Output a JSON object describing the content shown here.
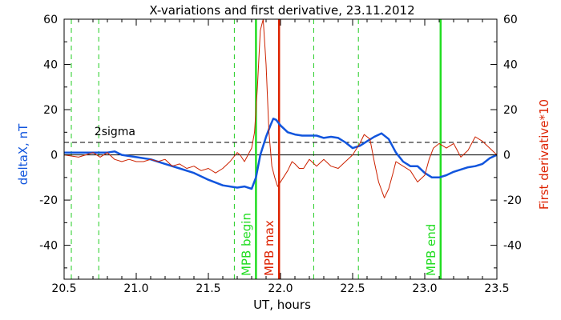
{
  "chart_data": {
    "type": "line",
    "title": "X-variations and first derivative, 23.11.2012",
    "xlabel": "UT, hours",
    "ylabel_left": "deltaX, nT",
    "ylabel_right": "First derivative*10",
    "xlim": [
      20.5,
      23.5
    ],
    "ylim": [
      -55,
      60
    ],
    "x_ticks": [
      "20.5",
      "21.0",
      "21.5",
      "22.0",
      "22.5",
      "23.0",
      "23.5"
    ],
    "y_ticks_left": [
      "-40",
      "-20",
      "0",
      "20",
      "40",
      "60"
    ],
    "y_ticks_right": [
      "-40",
      "-20",
      "0",
      "20",
      "40",
      "60"
    ],
    "threshold": {
      "label": "2sigma",
      "value": 5.5
    },
    "series": [
      {
        "name": "deltaX",
        "color": "#1155dd",
        "x": [
          20.5,
          20.6,
          20.7,
          20.8,
          20.85,
          20.9,
          21.0,
          21.1,
          21.2,
          21.3,
          21.4,
          21.5,
          21.6,
          21.65,
          21.7,
          21.75,
          21.8,
          21.83,
          21.86,
          21.9,
          21.93,
          21.95,
          21.97,
          22.0,
          22.05,
          22.1,
          22.15,
          22.2,
          22.25,
          22.3,
          22.35,
          22.4,
          22.45,
          22.5,
          22.55,
          22.6,
          22.65,
          22.7,
          22.75,
          22.8,
          22.85,
          22.9,
          22.95,
          23.0,
          23.05,
          23.1,
          23.15,
          23.2,
          23.25,
          23.3,
          23.35,
          23.4,
          23.45,
          23.5
        ],
        "y": [
          1,
          1,
          1,
          1,
          1.5,
          0,
          -1,
          -2,
          -4,
          -6,
          -8,
          -11,
          -13.5,
          -14,
          -14.5,
          -14,
          -15,
          -10,
          0,
          8,
          13,
          16,
          15.5,
          13,
          10,
          9,
          8.5,
          8.5,
          8.5,
          7.5,
          8,
          7.5,
          5.5,
          3,
          4,
          6,
          8,
          9.5,
          7,
          1,
          -3,
          -5,
          -5,
          -8,
          -10,
          -10,
          -9,
          -7.5,
          -6.5,
          -5.5,
          -5,
          -4,
          -1.5,
          0
        ]
      },
      {
        "name": "First derivative*10",
        "color": "#cc2200",
        "x": [
          20.5,
          20.55,
          20.6,
          20.65,
          20.7,
          20.75,
          20.8,
          20.85,
          20.9,
          20.95,
          21.0,
          21.05,
          21.1,
          21.15,
          21.2,
          21.25,
          21.3,
          21.35,
          21.4,
          21.45,
          21.5,
          21.55,
          21.6,
          21.65,
          21.7,
          21.72,
          21.75,
          21.8,
          21.82,
          21.84,
          21.86,
          21.88,
          21.9,
          21.92,
          21.94,
          21.96,
          21.98,
          22.0,
          22.02,
          22.05,
          22.08,
          22.1,
          22.13,
          22.16,
          22.2,
          22.25,
          22.3,
          22.35,
          22.4,
          22.45,
          22.5,
          22.55,
          22.58,
          22.62,
          22.65,
          22.68,
          22.72,
          22.75,
          22.78,
          22.8,
          22.85,
          22.9,
          22.95,
          23.0,
          23.03,
          23.06,
          23.1,
          23.15,
          23.2,
          23.25,
          23.3,
          23.35,
          23.4,
          23.45,
          23.5
        ],
        "y": [
          0,
          -0.5,
          -1,
          0,
          1,
          -1,
          1,
          -2,
          -3,
          -2,
          -3,
          -3,
          -2,
          -3,
          -2,
          -5,
          -4,
          -6,
          -5,
          -7,
          -6,
          -8,
          -6,
          -3,
          1,
          0,
          -3,
          3,
          10,
          30,
          55,
          60,
          40,
          10,
          -5,
          -10,
          -14,
          -12,
          -10,
          -7,
          -3,
          -4,
          -6,
          -6,
          -2,
          -5,
          -2,
          -5,
          -6,
          -3,
          0,
          5,
          9,
          7,
          -3,
          -12,
          -19,
          -15,
          -8,
          -3,
          -5,
          -7,
          -12,
          -9,
          -2,
          3,
          5,
          3,
          5,
          -1,
          2,
          8,
          6,
          3,
          0
        ]
      }
    ],
    "annotations": [
      {
        "label": "MPB begin",
        "x": 21.83,
        "color": "#22dd22"
      },
      {
        "label": "MPB max",
        "x": 21.99,
        "color": "#dd2200"
      },
      {
        "label": "MPB end",
        "x": 23.11,
        "color": "#22dd22"
      }
    ],
    "dashed_markers": [
      20.55,
      20.74,
      21.68,
      22.23,
      22.54
    ]
  }
}
